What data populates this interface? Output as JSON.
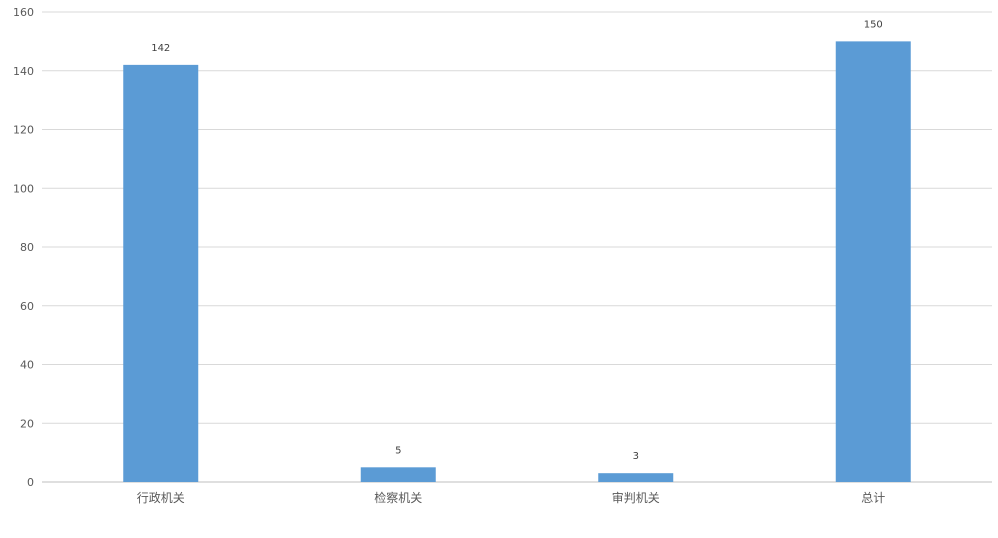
{
  "chart_data": {
    "type": "bar",
    "title": "",
    "xlabel": "",
    "ylabel": "",
    "categories": [
      "行政机关",
      "检察机关",
      "审判机关",
      "总计"
    ],
    "values": [
      142,
      5,
      3,
      150
    ],
    "data_labels": [
      "142",
      "5",
      "3",
      "150"
    ],
    "ylim": [
      0,
      160
    ],
    "yticks": [
      0,
      20,
      40,
      60,
      80,
      100,
      120,
      140,
      160
    ],
    "grid": true,
    "legend": "none",
    "bar_color": "#5b9bd5"
  }
}
